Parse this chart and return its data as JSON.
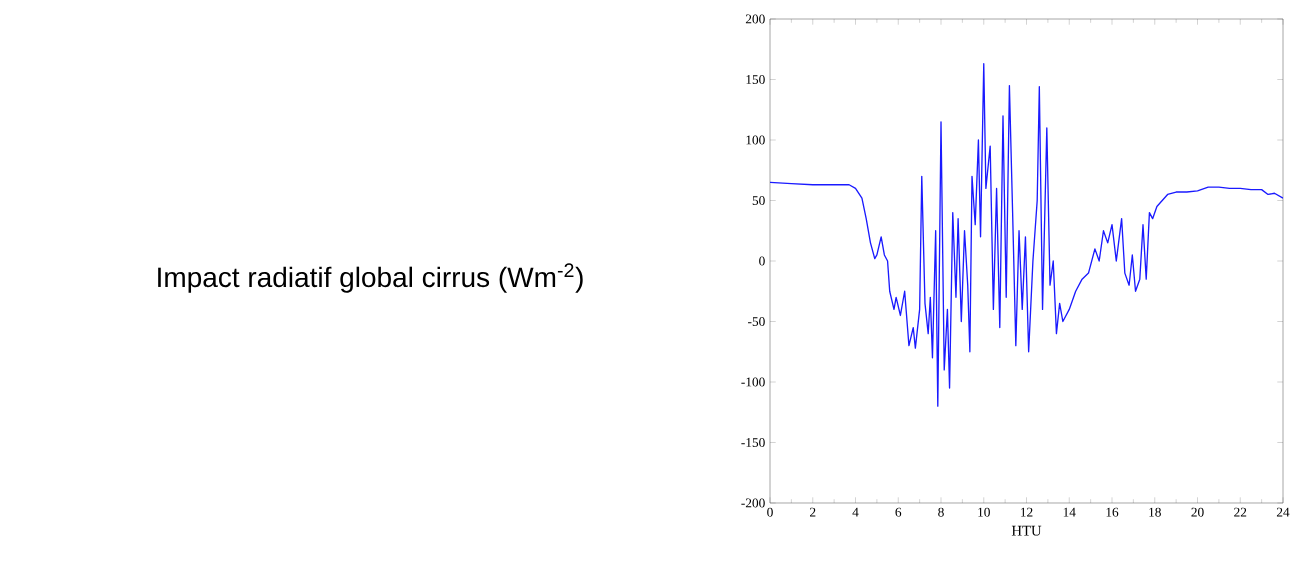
{
  "chart_data": {
    "type": "line",
    "annotations": [
      "Impact radiatif global cirrus (Wm$^{-2}$)"
    ],
    "xlabel": "HTU",
    "xlim": [
      0,
      24
    ],
    "ylim": [
      -200,
      200
    ],
    "xticks": [
      0,
      2,
      4,
      6,
      8,
      10,
      12,
      14,
      16,
      18,
      20,
      22,
      24
    ],
    "yticks": [
      -200,
      -150,
      -100,
      -50,
      0,
      50,
      100,
      150,
      200
    ],
    "marker": "none",
    "line_style": "solid",
    "series": [
      {
        "color": "#1a1aff",
        "x": [
          0,
          1,
          2,
          3,
          3.7,
          4.0,
          4.3,
          4.5,
          4.7,
          4.9,
          5.0,
          5.2,
          5.35,
          5.5,
          5.6,
          5.8,
          5.9,
          6.1,
          6.3,
          6.5,
          6.7,
          6.8,
          7.0,
          7.1,
          7.25,
          7.4,
          7.5,
          7.6,
          7.75,
          7.85,
          8.0,
          8.15,
          8.3,
          8.4,
          8.55,
          8.7,
          8.8,
          8.95,
          9.1,
          9.25,
          9.35,
          9.45,
          9.6,
          9.75,
          9.85,
          10.0,
          10.1,
          10.3,
          10.45,
          10.6,
          10.75,
          10.9,
          11.05,
          11.2,
          11.35,
          11.5,
          11.65,
          11.8,
          11.95,
          12.1,
          12.3,
          12.5,
          12.6,
          12.75,
          12.95,
          13.1,
          13.25,
          13.4,
          13.55,
          13.7,
          14,
          14.3,
          14.6,
          14.9,
          15.2,
          15.4,
          15.6,
          15.8,
          16,
          16.2,
          16.45,
          16.6,
          16.8,
          16.95,
          17.1,
          17.3,
          17.45,
          17.6,
          17.75,
          17.9,
          18.1,
          18.6,
          19.0,
          19.5,
          20,
          20.5,
          21,
          21.5,
          22,
          22.5,
          23,
          23.3,
          23.6,
          24
        ],
        "values": [
          65,
          64,
          63,
          63,
          63,
          60,
          52,
          35,
          15,
          2,
          5,
          20,
          5,
          0,
          -25,
          -40,
          -30,
          -45,
          -25,
          -70,
          -55,
          -72,
          -40,
          70,
          -35,
          -60,
          -30,
          -80,
          25,
          -120,
          115,
          -90,
          -40,
          -105,
          40,
          -30,
          35,
          -50,
          25,
          -20,
          -75,
          70,
          30,
          100,
          20,
          163,
          60,
          95,
          -40,
          60,
          -55,
          120,
          -30,
          145,
          40,
          -70,
          25,
          -40,
          20,
          -75,
          0,
          50,
          144,
          -40,
          110,
          -20,
          0,
          -60,
          -35,
          -50,
          -40,
          -25,
          -15,
          -10,
          10,
          0,
          25,
          15,
          30,
          0,
          35,
          -10,
          -20,
          5,
          -25,
          -15,
          30,
          -15,
          40,
          35,
          45,
          55,
          57,
          57,
          58,
          61,
          61,
          60,
          60,
          59,
          59,
          55,
          56,
          52
        ]
      }
    ]
  }
}
